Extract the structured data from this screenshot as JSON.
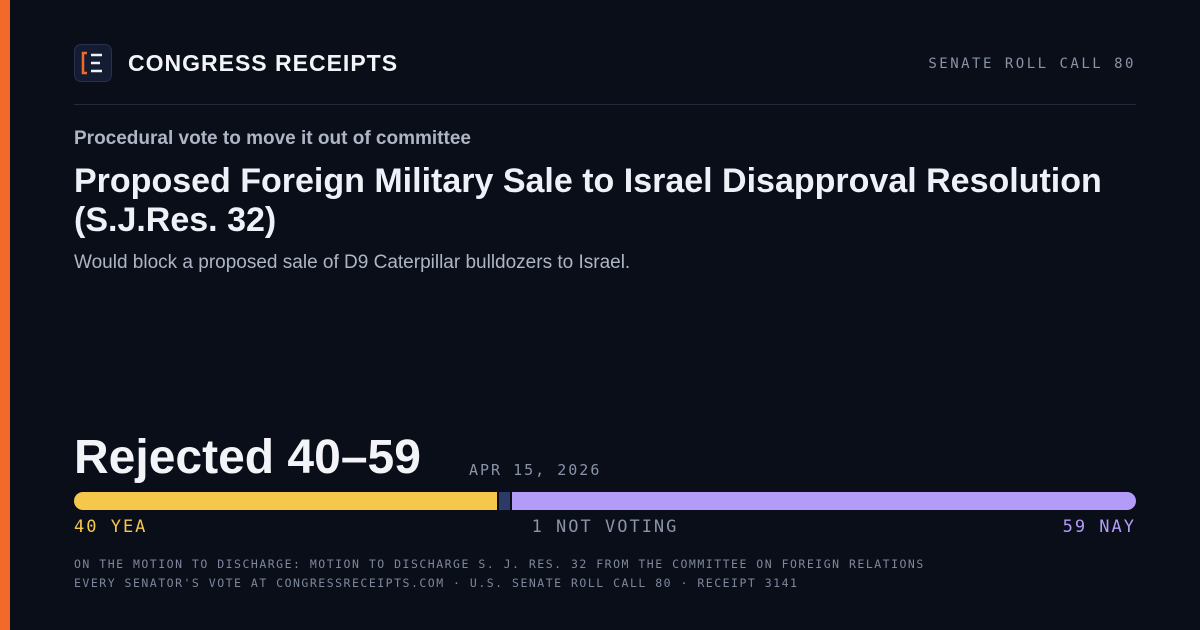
{
  "brand": "CONGRESS RECEIPTS",
  "roll_call": "SENATE ROLL CALL 80",
  "kicker": "Procedural vote to move it out of committee",
  "title": "Proposed Foreign Military Sale to Israel Disapproval Resolution (S.J.Res. 32)",
  "description": "Would block a proposed sale of D9 Caterpillar bulldozers to Israel.",
  "result": "Rejected 40–59",
  "date": "APR 15, 2026",
  "votes": {
    "yea": {
      "value": 40,
      "label": "40 YEA",
      "color": "#f5c84b"
    },
    "not_voting": {
      "value": 1,
      "label": "1 NOT VOTING",
      "color": "#2b3a66"
    },
    "nay": {
      "value": 59,
      "label": "59 NAY",
      "color": "#b29cf8"
    }
  },
  "footnotes": [
    "ON THE MOTION TO DISCHARGE: MOTION TO DISCHARGE S. J. RES. 32 FROM THE COMMITTEE ON FOREIGN RELATIONS",
    "EVERY SENATOR'S VOTE AT CONGRESSRECEIPTS.COM · U.S. SENATE ROLL CALL 80 · RECEIPT 3141"
  ]
}
